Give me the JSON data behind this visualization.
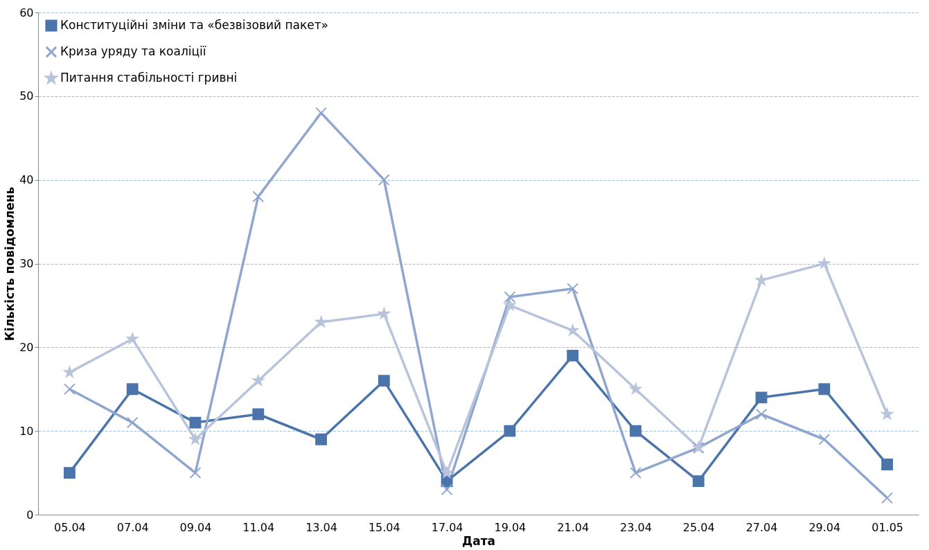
{
  "chart_data": {
    "type": "line",
    "xlabel": "Дата",
    "ylabel": "Кількість повідомлень",
    "categories": [
      "05.04",
      "07.04",
      "09.04",
      "11.04",
      "13.04",
      "15.04",
      "17.04",
      "19.04",
      "21.04",
      "23.04",
      "25.04",
      "27.04",
      "29.04",
      "01.05"
    ],
    "series": [
      {
        "name": "Конституційні зміни та «безвізовий пакет»",
        "color": "#4a74aa",
        "marker": "square",
        "values": [
          5,
          15,
          11,
          12,
          9,
          16,
          4,
          10,
          19,
          10,
          4,
          14,
          15,
          6
        ]
      },
      {
        "name": "Криза уряду та коаліції",
        "color": "#8fa6cf",
        "marker": "cross",
        "values": [
          15,
          11,
          5,
          38,
          48,
          40,
          3,
          26,
          27,
          5,
          8,
          12,
          9,
          2
        ]
      },
      {
        "name": "Питання стабільності гривні",
        "color": "#b8c4dc",
        "marker": "star",
        "values": [
          17,
          21,
          9,
          16,
          23,
          24,
          5,
          25,
          22,
          15,
          8,
          28,
          30,
          12
        ]
      }
    ],
    "ylim": [
      0,
      60
    ],
    "yticks": [
      0,
      10,
      20,
      30,
      40,
      50,
      60
    ],
    "grid": "y",
    "legend": "top left",
    "line_style": "solid"
  }
}
